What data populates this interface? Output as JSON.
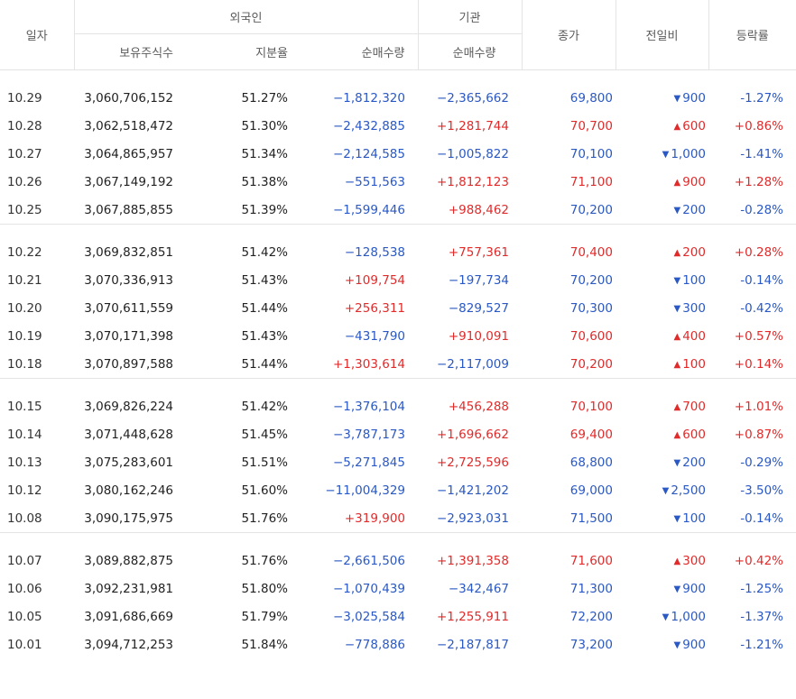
{
  "header": {
    "date": "일자",
    "foreign": "외국인",
    "institution": "기관",
    "close": "종가",
    "change": "전일비",
    "rate": "등락률",
    "holdings": "보유주식수",
    "share_ratio": "지분율",
    "foreign_net": "순매수량",
    "inst_net": "순매수량"
  },
  "groups": [
    [
      {
        "date": "10.29",
        "holdings": "3,060,706,152",
        "ratio": "51.27%",
        "fnet": "−1,812,320",
        "inet": "−2,365,662",
        "close": "69,800",
        "change": "900",
        "rate": "-1.27%",
        "fdir": "down",
        "idir": "down",
        "dir": "down"
      },
      {
        "date": "10.28",
        "holdings": "3,062,518,472",
        "ratio": "51.30%",
        "fnet": "−2,432,885",
        "inet": "+1,281,744",
        "close": "70,700",
        "change": "600",
        "rate": "+0.86%",
        "fdir": "down",
        "idir": "up",
        "dir": "up"
      },
      {
        "date": "10.27",
        "holdings": "3,064,865,957",
        "ratio": "51.34%",
        "fnet": "−2,124,585",
        "inet": "−1,005,822",
        "close": "70,100",
        "change": "1,000",
        "rate": "-1.41%",
        "fdir": "down",
        "idir": "down",
        "dir": "down"
      },
      {
        "date": "10.26",
        "holdings": "3,067,149,192",
        "ratio": "51.38%",
        "fnet": "−551,563",
        "inet": "+1,812,123",
        "close": "71,100",
        "change": "900",
        "rate": "+1.28%",
        "fdir": "down",
        "idir": "up",
        "dir": "up"
      },
      {
        "date": "10.25",
        "holdings": "3,067,885,855",
        "ratio": "51.39%",
        "fnet": "−1,599,446",
        "inet": "+988,462",
        "close": "70,200",
        "change": "200",
        "rate": "-0.28%",
        "fdir": "down",
        "idir": "up",
        "dir": "down"
      }
    ],
    [
      {
        "date": "10.22",
        "holdings": "3,069,832,851",
        "ratio": "51.42%",
        "fnet": "−128,538",
        "inet": "+757,361",
        "close": "70,400",
        "change": "200",
        "rate": "+0.28%",
        "fdir": "down",
        "idir": "up",
        "dir": "up"
      },
      {
        "date": "10.21",
        "holdings": "3,070,336,913",
        "ratio": "51.43%",
        "fnet": "+109,754",
        "inet": "−197,734",
        "close": "70,200",
        "change": "100",
        "rate": "-0.14%",
        "fdir": "up",
        "idir": "down",
        "dir": "down"
      },
      {
        "date": "10.20",
        "holdings": "3,070,611,559",
        "ratio": "51.44%",
        "fnet": "+256,311",
        "inet": "−829,527",
        "close": "70,300",
        "change": "300",
        "rate": "-0.42%",
        "fdir": "up",
        "idir": "down",
        "dir": "down"
      },
      {
        "date": "10.19",
        "holdings": "3,070,171,398",
        "ratio": "51.43%",
        "fnet": "−431,790",
        "inet": "+910,091",
        "close": "70,600",
        "change": "400",
        "rate": "+0.57%",
        "fdir": "down",
        "idir": "up",
        "dir": "up"
      },
      {
        "date": "10.18",
        "holdings": "3,070,897,588",
        "ratio": "51.44%",
        "fnet": "+1,303,614",
        "inet": "−2,117,009",
        "close": "70,200",
        "change": "100",
        "rate": "+0.14%",
        "fdir": "up",
        "idir": "down",
        "dir": "up"
      }
    ],
    [
      {
        "date": "10.15",
        "holdings": "3,069,826,224",
        "ratio": "51.42%",
        "fnet": "−1,376,104",
        "inet": "+456,288",
        "close": "70,100",
        "change": "700",
        "rate": "+1.01%",
        "fdir": "down",
        "idir": "up",
        "dir": "up"
      },
      {
        "date": "10.14",
        "holdings": "3,071,448,628",
        "ratio": "51.45%",
        "fnet": "−3,787,173",
        "inet": "+1,696,662",
        "close": "69,400",
        "change": "600",
        "rate": "+0.87%",
        "fdir": "down",
        "idir": "up",
        "dir": "up"
      },
      {
        "date": "10.13",
        "holdings": "3,075,283,601",
        "ratio": "51.51%",
        "fnet": "−5,271,845",
        "inet": "+2,725,596",
        "close": "68,800",
        "change": "200",
        "rate": "-0.29%",
        "fdir": "down",
        "idir": "up",
        "dir": "down"
      },
      {
        "date": "10.12",
        "holdings": "3,080,162,246",
        "ratio": "51.60%",
        "fnet": "−11,004,329",
        "inet": "−1,421,202",
        "close": "69,000",
        "change": "2,500",
        "rate": "-3.50%",
        "fdir": "down",
        "idir": "down",
        "dir": "down"
      },
      {
        "date": "10.08",
        "holdings": "3,090,175,975",
        "ratio": "51.76%",
        "fnet": "+319,900",
        "inet": "−2,923,031",
        "close": "71,500",
        "change": "100",
        "rate": "-0.14%",
        "fdir": "up",
        "idir": "down",
        "dir": "down"
      }
    ],
    [
      {
        "date": "10.07",
        "holdings": "3,089,882,875",
        "ratio": "51.76%",
        "fnet": "−2,661,506",
        "inet": "+1,391,358",
        "close": "71,600",
        "change": "300",
        "rate": "+0.42%",
        "fdir": "down",
        "idir": "up",
        "dir": "up"
      },
      {
        "date": "10.06",
        "holdings": "3,092,231,981",
        "ratio": "51.80%",
        "fnet": "−1,070,439",
        "inet": "−342,467",
        "close": "71,300",
        "change": "900",
        "rate": "-1.25%",
        "fdir": "down",
        "idir": "down",
        "dir": "down"
      },
      {
        "date": "10.05",
        "holdings": "3,091,686,669",
        "ratio": "51.79%",
        "fnet": "−3,025,584",
        "inet": "+1,255,911",
        "close": "72,200",
        "change": "1,000",
        "rate": "-1.37%",
        "fdir": "down",
        "idir": "up",
        "dir": "down"
      },
      {
        "date": "10.01",
        "holdings": "3,094,712,253",
        "ratio": "51.84%",
        "fnet": "−778,886",
        "inet": "−2,187,817",
        "close": "73,200",
        "change": "900",
        "rate": "-1.21%",
        "fdir": "down",
        "idir": "down",
        "dir": "down"
      }
    ]
  ],
  "colors": {
    "up": "#e12b2b",
    "down": "#2a58c4"
  },
  "icons": {
    "up": "triangle-up-icon",
    "down": "triangle-down-icon"
  }
}
